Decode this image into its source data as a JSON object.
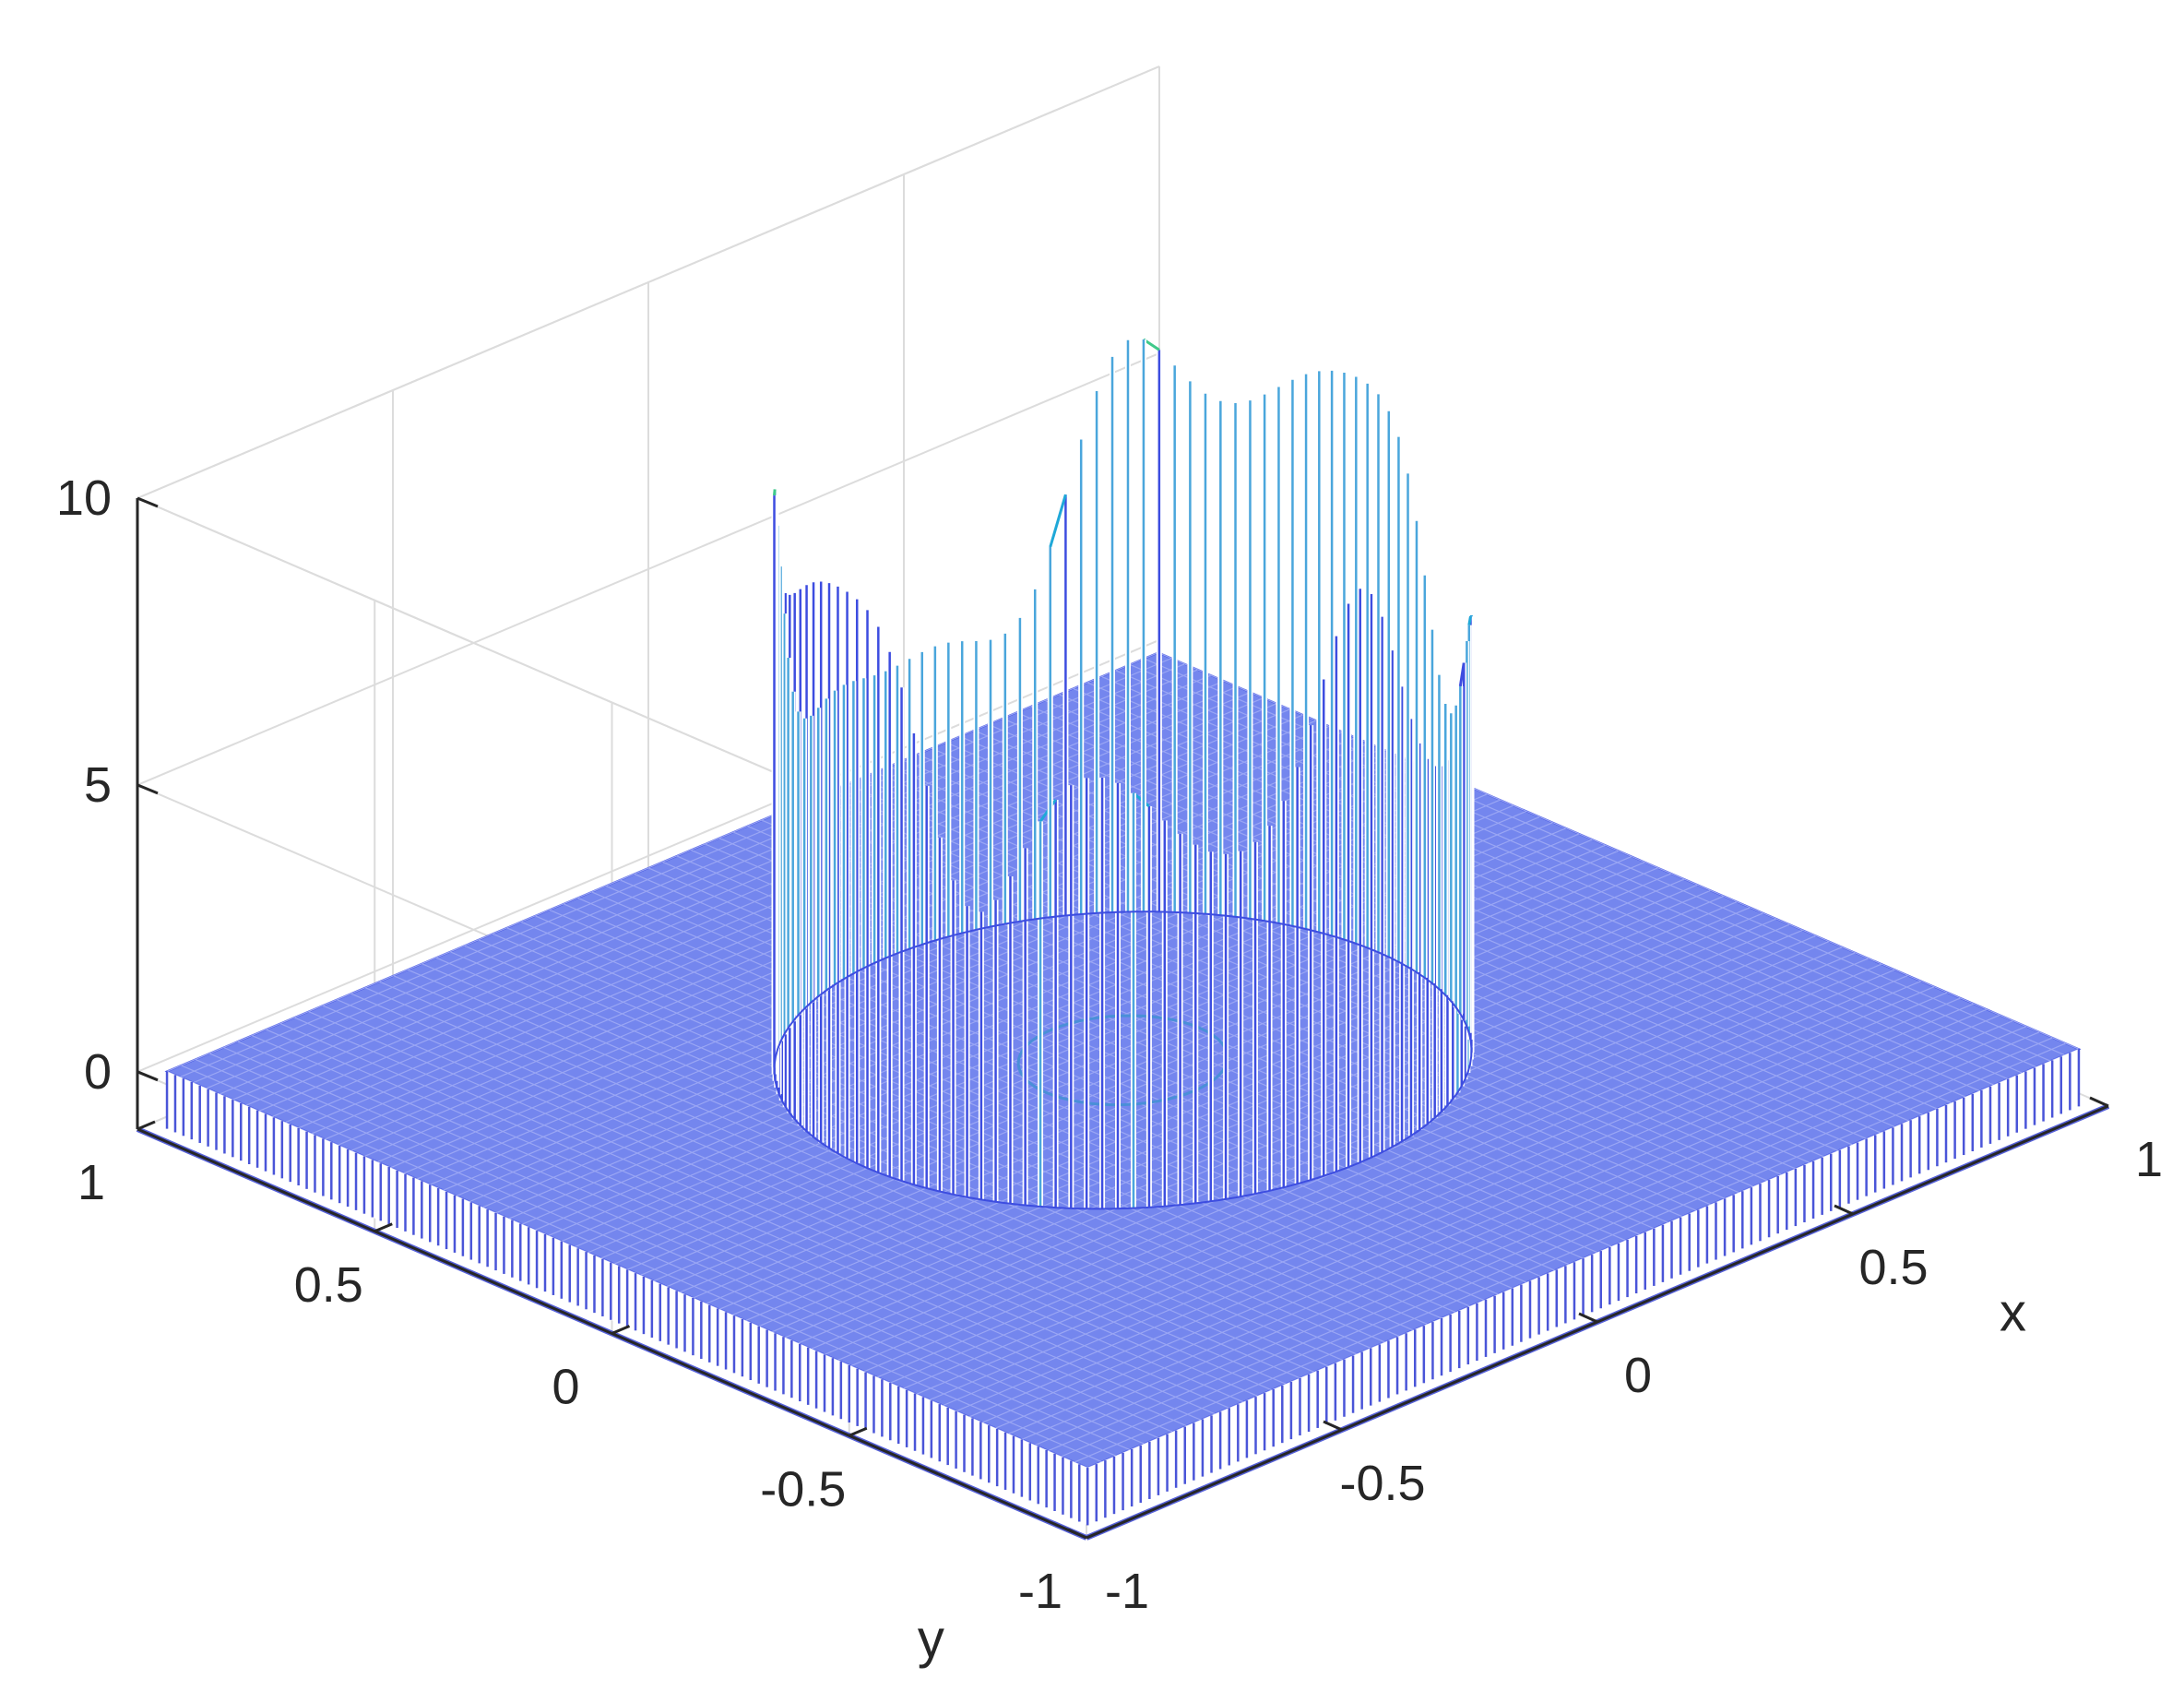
{
  "chart_data": {
    "type": "surface-mesh-3d",
    "xlabel": "x",
    "ylabel": "y",
    "zlabel": "",
    "xlim": [
      -1,
      1
    ],
    "ylim": [
      -1,
      1
    ],
    "zlim": [
      -1,
      10
    ],
    "xticks": [
      -1,
      -0.5,
      0,
      0.5,
      1
    ],
    "yticks": [
      -1,
      -0.5,
      0,
      0.5,
      1
    ],
    "zticks": [
      0,
      5,
      10
    ],
    "xtick_labels": [
      "-1",
      "-0.5",
      "0",
      "0.5",
      "1"
    ],
    "ytick_labels": [
      "-1",
      "-0.5",
      "0",
      "0.5",
      "1"
    ],
    "ztick_labels": [
      "0",
      "5",
      "10"
    ],
    "grid": true,
    "base_value": 0,
    "boundary_value": -1,
    "cylinder": {
      "center": [
        0,
        0
      ],
      "radius": 0.5,
      "inner_radius": 0.15,
      "height_min": 5,
      "height_max": 10
    },
    "colormap": [
      "#3d4de0",
      "#1fa8d8",
      "#3fc98a",
      "#d8c83a"
    ]
  }
}
